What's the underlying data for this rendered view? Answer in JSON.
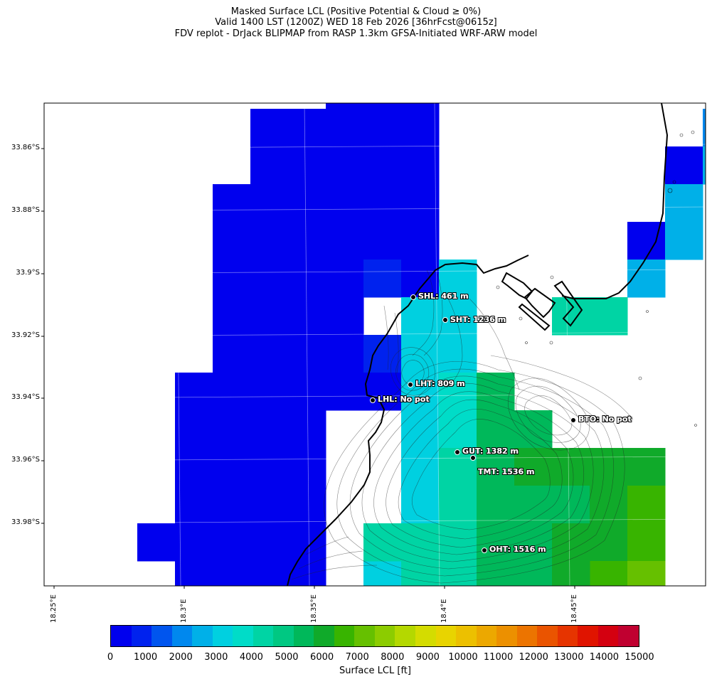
{
  "title": {
    "line1": "Masked Surface LCL (Positive Potential & Cloud ≥ 0%)",
    "line2": "Valid 1400 LST (1200Z) WED 18 Feb 2026 [36hrFcst@0615z]",
    "line3": "FDV replot - DrJack BLIPMAP from RASP 1.3km GFSA-Initiated WRF-ARW model"
  },
  "lat_labels": [
    "33.86°S",
    "33.88°S",
    "33.9°S",
    "33.92°S",
    "33.94°S",
    "33.96°S",
    "33.98°S"
  ],
  "lon_labels": [
    "18.25°E",
    "18.3°E",
    "18.35°E",
    "18.4°E",
    "18.45°E"
  ],
  "stations": [
    {
      "label": "SHL: 461 m"
    },
    {
      "label": "SHT: 1236 m"
    },
    {
      "label": "LHT: 809 m"
    },
    {
      "label": "LHL: No pot"
    },
    {
      "label": "BTO: No pot"
    },
    {
      "label": "GUT: 1382 m"
    },
    {
      "label": "TMT: 1536 m"
    },
    {
      "label": "OHT: 1516 m"
    }
  ],
  "colorbar": {
    "label": "Surface LCL [ft]",
    "ticks": [
      "0",
      "1000",
      "2000",
      "3000",
      "4000",
      "5000",
      "6000",
      "7000",
      "8000",
      "9000",
      "10000",
      "11000",
      "12000",
      "13000",
      "14000",
      "15000"
    ],
    "colors": [
      "#0000ee",
      "#0022ee",
      "#0055ee",
      "#0088ee",
      "#00b0e8",
      "#00d0e0",
      "#00dcc8",
      "#00d4a4",
      "#00c882",
      "#00b85a",
      "#10aa2a",
      "#38b400",
      "#66c000",
      "#8ccc00",
      "#b4d800",
      "#d4dc00",
      "#e8d400",
      "#ecc000",
      "#eca800",
      "#ec9000",
      "#ec7400",
      "#ea5400",
      "#e63400",
      "#e01400",
      "#d40010",
      "#c00030"
    ]
  }
}
